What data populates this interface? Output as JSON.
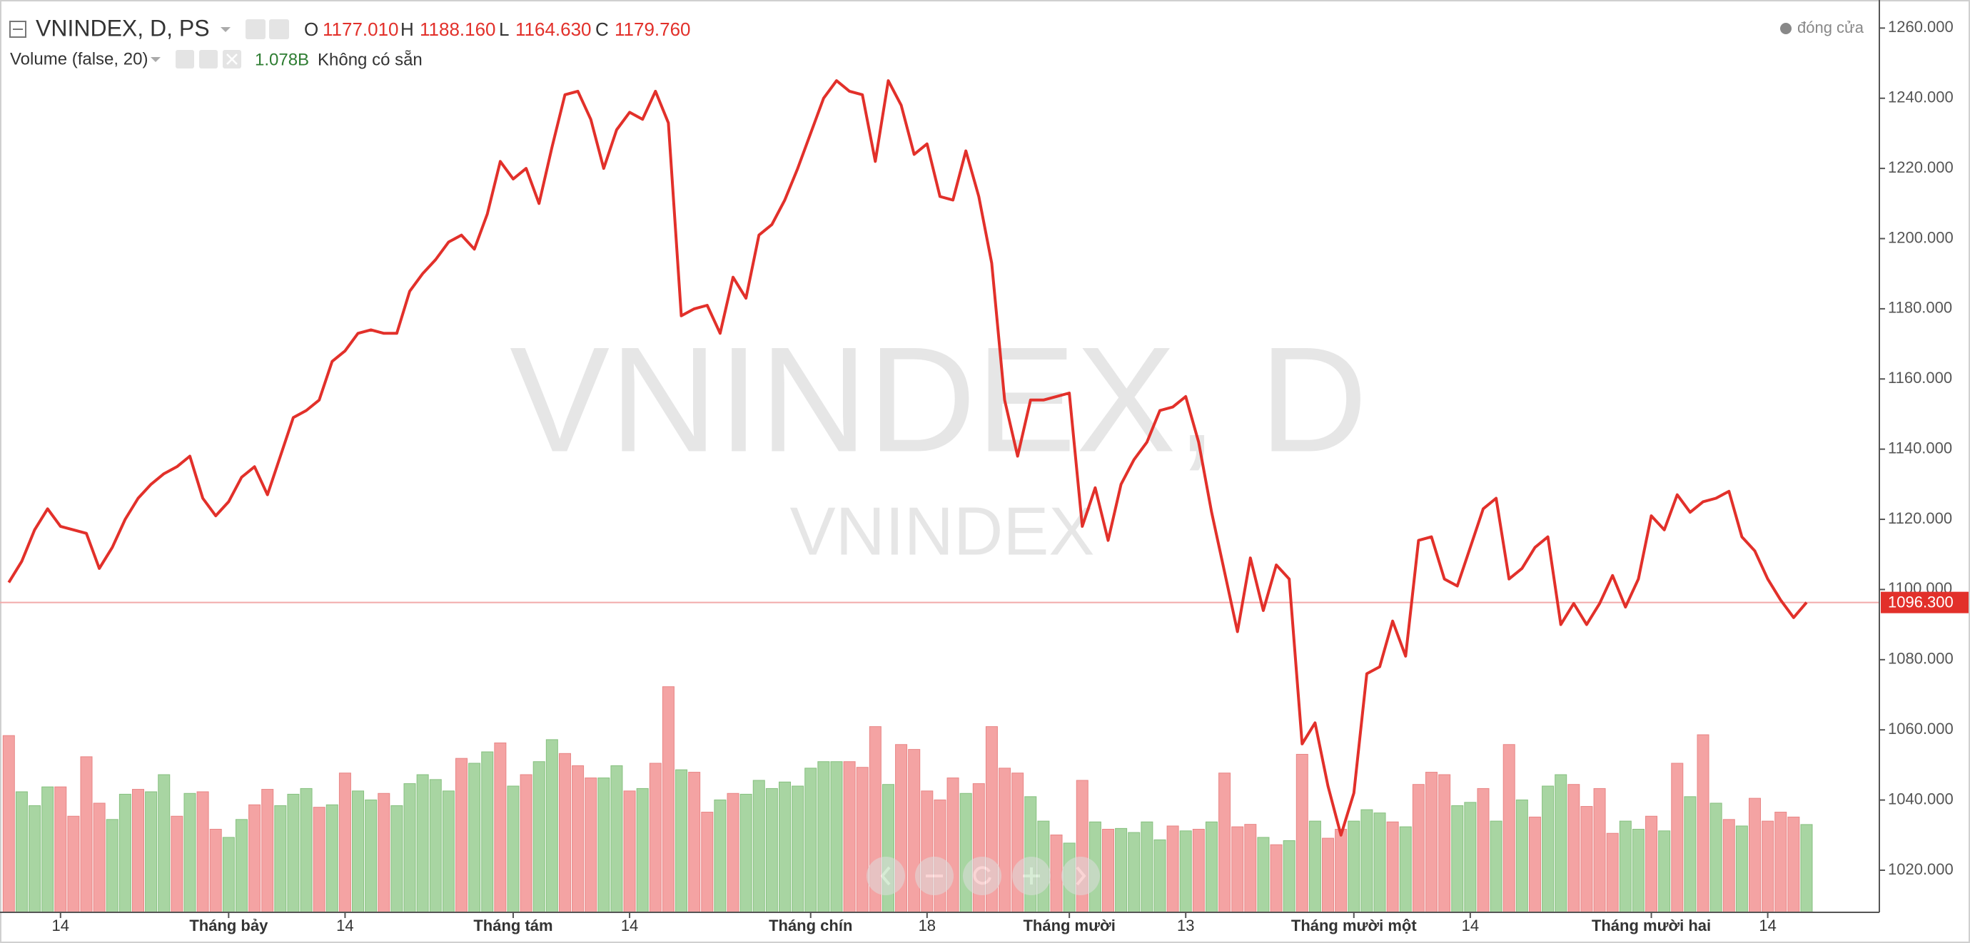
{
  "chart_data": {
    "type": "line",
    "title": "VNINDEX, D, PS",
    "ohlc": [
      {
        "label": "O",
        "value": "1177.010"
      },
      {
        "label": "H",
        "value": "1188.160"
      },
      {
        "label": "L",
        "value": "1164.630"
      },
      {
        "label": "C",
        "value": "1179.760"
      }
    ],
    "watermark": "VNINDEX, D",
    "watermark_sub": "VNINDEX",
    "categories": [
      null,
      null,
      null,
      null,
      "14",
      null,
      null,
      null,
      null,
      null,
      null,
      null,
      null,
      null,
      null,
      null,
      null,
      "Tháng bảy",
      null,
      null,
      null,
      null,
      null,
      null,
      null,
      null,
      "14",
      null,
      null,
      null,
      null,
      null,
      null,
      null,
      null,
      null,
      null,
      null,
      null,
      "Tháng tám",
      null,
      null,
      null,
      null,
      null,
      null,
      null,
      null,
      "14",
      null,
      null,
      null,
      null,
      null,
      null,
      null,
      null,
      null,
      null,
      null,
      null,
      null,
      "Tháng chín",
      null,
      null,
      null,
      null,
      null,
      null,
      null,
      null,
      "18",
      null,
      null,
      null,
      null,
      null,
      null,
      null,
      null,
      null,
      null,
      "Tháng mười",
      null,
      null,
      null,
      null,
      null,
      null,
      null,
      null,
      "13",
      null,
      null,
      null,
      null,
      null,
      null,
      null,
      null,
      null,
      null,
      null,
      null,
      "Tháng mười một",
      null,
      null,
      null,
      null,
      null,
      null,
      null,
      null,
      "14",
      null,
      null,
      null,
      null,
      null,
      null,
      null,
      null,
      null,
      null,
      null,
      null,
      null,
      "Tháng mười hai",
      null,
      null,
      null,
      null,
      null,
      null,
      null,
      null,
      "14",
      null,
      null,
      null
    ],
    "series": [
      {
        "name": "đóng cửa",
        "color": "#e2302a",
        "values": [
          1102,
          1108,
          1117,
          1123,
          1118,
          1117,
          1116,
          1106,
          1112,
          1120,
          1126,
          1130,
          1133,
          1135,
          1138,
          1126,
          1121,
          1125,
          1132,
          1135,
          1127,
          1138,
          1149,
          1151,
          1154,
          1165,
          1168,
          1173,
          1174,
          1173,
          1173,
          1185,
          1190,
          1194,
          1199,
          1201,
          1197,
          1207,
          1222,
          1217,
          1220,
          1210,
          1226,
          1241,
          1242,
          1234,
          1220,
          1231,
          1236,
          1234,
          1242,
          1233,
          1178,
          1180,
          1181,
          1173,
          1189,
          1183,
          1201,
          1204,
          1211,
          1220,
          1230,
          1240,
          1245,
          1242,
          1241,
          1222,
          1245,
          1238,
          1224,
          1227,
          1212,
          1211,
          1225,
          1212,
          1193,
          1154,
          1138,
          1154,
          1154,
          1155,
          1156,
          1118,
          1129,
          1114,
          1130,
          1137,
          1142,
          1151,
          1152,
          1155,
          1142,
          1122,
          1105,
          1088,
          1109,
          1094,
          1107,
          1103,
          1056,
          1062,
          1044,
          1030,
          1042,
          1076,
          1078,
          1091,
          1081,
          1114,
          1115,
          1103,
          1101,
          1112,
          1123,
          1126,
          1103,
          1106,
          1112,
          1115,
          1090,
          1096,
          1090,
          1096,
          1104,
          1095,
          1103,
          1121,
          1117,
          1127,
          1122,
          1125,
          1126,
          1128,
          1115,
          1111,
          1103,
          1097,
          1092,
          1096.3
        ]
      }
    ],
    "last_value_label": "1096.300",
    "volume": {
      "title": "Volume (false, 20)",
      "value": "1.078B",
      "status": "Không có sẵn",
      "up_color": "#a8d5a2",
      "down_color": "#f4a3a3",
      "lim": [
        0,
        11.2
      ],
      "values": [
        2.17,
        1.48,
        1.31,
        1.54,
        1.54,
        1.18,
        1.91,
        1.34,
        1.14,
        1.45,
        1.51,
        1.48,
        1.69,
        1.18,
        1.46,
        1.48,
        1.02,
        0.92,
        1.14,
        1.32,
        1.51,
        1.31,
        1.45,
        1.52,
        1.29,
        1.32,
        1.71,
        1.49,
        1.38,
        1.46,
        1.31,
        1.58,
        1.69,
        1.63,
        1.49,
        1.89,
        1.83,
        1.97,
        2.08,
        1.55,
        1.69,
        1.85,
        2.12,
        1.95,
        1.8,
        1.65,
        1.65,
        1.8,
        1.49,
        1.52,
        1.83,
        2.77,
        1.75,
        1.72,
        1.23,
        1.38,
        1.46,
        1.45,
        1.62,
        1.52,
        1.6,
        1.55,
        1.77,
        1.85,
        1.85,
        1.85,
        1.78,
        2.28,
        1.57,
        2.06,
        2.0,
        1.49,
        1.38,
        1.65,
        1.46,
        1.58,
        2.28,
        1.77,
        1.71,
        1.42,
        1.12,
        0.95,
        0.85,
        1.62,
        1.11,
        1.02,
        1.03,
        0.98,
        1.11,
        0.89,
        1.06,
        1.0,
        1.02,
        1.11,
        1.71,
        1.05,
        1.08,
        0.92,
        0.83,
        0.88,
        1.94,
        1.12,
        0.91,
        1.02,
        1.12,
        1.26,
        1.22,
        1.11,
        1.05,
        1.57,
        1.72,
        1.69,
        1.31,
        1.35,
        1.52,
        1.12,
        2.06,
        1.38,
        1.17,
        1.55,
        1.69,
        1.57,
        1.3,
        1.52,
        0.97,
        1.12,
        1.02,
        1.18,
        1.0,
        1.83,
        1.42,
        2.18,
        1.34,
        1.14,
        1.06,
        1.4,
        1.12,
        1.23,
        1.17,
        1.078
      ],
      "rising": [
        false,
        true,
        true,
        true,
        false,
        false,
        false,
        false,
        true,
        true,
        false,
        true,
        true,
        false,
        true,
        false,
        false,
        true,
        true,
        false,
        false,
        true,
        true,
        true,
        false,
        true,
        false,
        true,
        true,
        false,
        true,
        true,
        true,
        true,
        true,
        false,
        true,
        true,
        false,
        true,
        false,
        true,
        true,
        false,
        false,
        false,
        true,
        true,
        false,
        true,
        false,
        false,
        true,
        false,
        false,
        true,
        false,
        true,
        true,
        true,
        true,
        true,
        true,
        true,
        true,
        false,
        false,
        false,
        true,
        false,
        false,
        false,
        false,
        false,
        true,
        false,
        false,
        false,
        false,
        true,
        true,
        false,
        true,
        false,
        true,
        false,
        true,
        true,
        true,
        true,
        false,
        true,
        false,
        true,
        false,
        false,
        false,
        true,
        false,
        true,
        false,
        true,
        false,
        false,
        true,
        true,
        true,
        false,
        true,
        false,
        false,
        false,
        true,
        true,
        false,
        true,
        false,
        true,
        false,
        true,
        true,
        false,
        false,
        false,
        false,
        true,
        true,
        false,
        true,
        false,
        true,
        false,
        true,
        false,
        true,
        false,
        false,
        false,
        false,
        true
      ]
    },
    "ylim": [
      1008,
      1268
    ],
    "yticks": [
      {
        "value": 1020,
        "label": "1020.000"
      },
      {
        "value": 1040,
        "label": "1040.000"
      },
      {
        "value": 1060,
        "label": "1060.000"
      },
      {
        "value": 1080,
        "label": "1080.000"
      },
      {
        "value": 1100,
        "label": "1100.000"
      },
      {
        "value": 1120,
        "label": "1120.000"
      },
      {
        "value": 1140,
        "label": "1140.000"
      },
      {
        "value": 1160,
        "label": "1160.000"
      },
      {
        "value": 1180,
        "label": "1180.000"
      },
      {
        "value": 1200,
        "label": "1200.000"
      },
      {
        "value": 1220,
        "label": "1220.000"
      },
      {
        "value": 1240,
        "label": "1240.000"
      },
      {
        "value": 1260,
        "label": "1260.000"
      }
    ]
  }
}
